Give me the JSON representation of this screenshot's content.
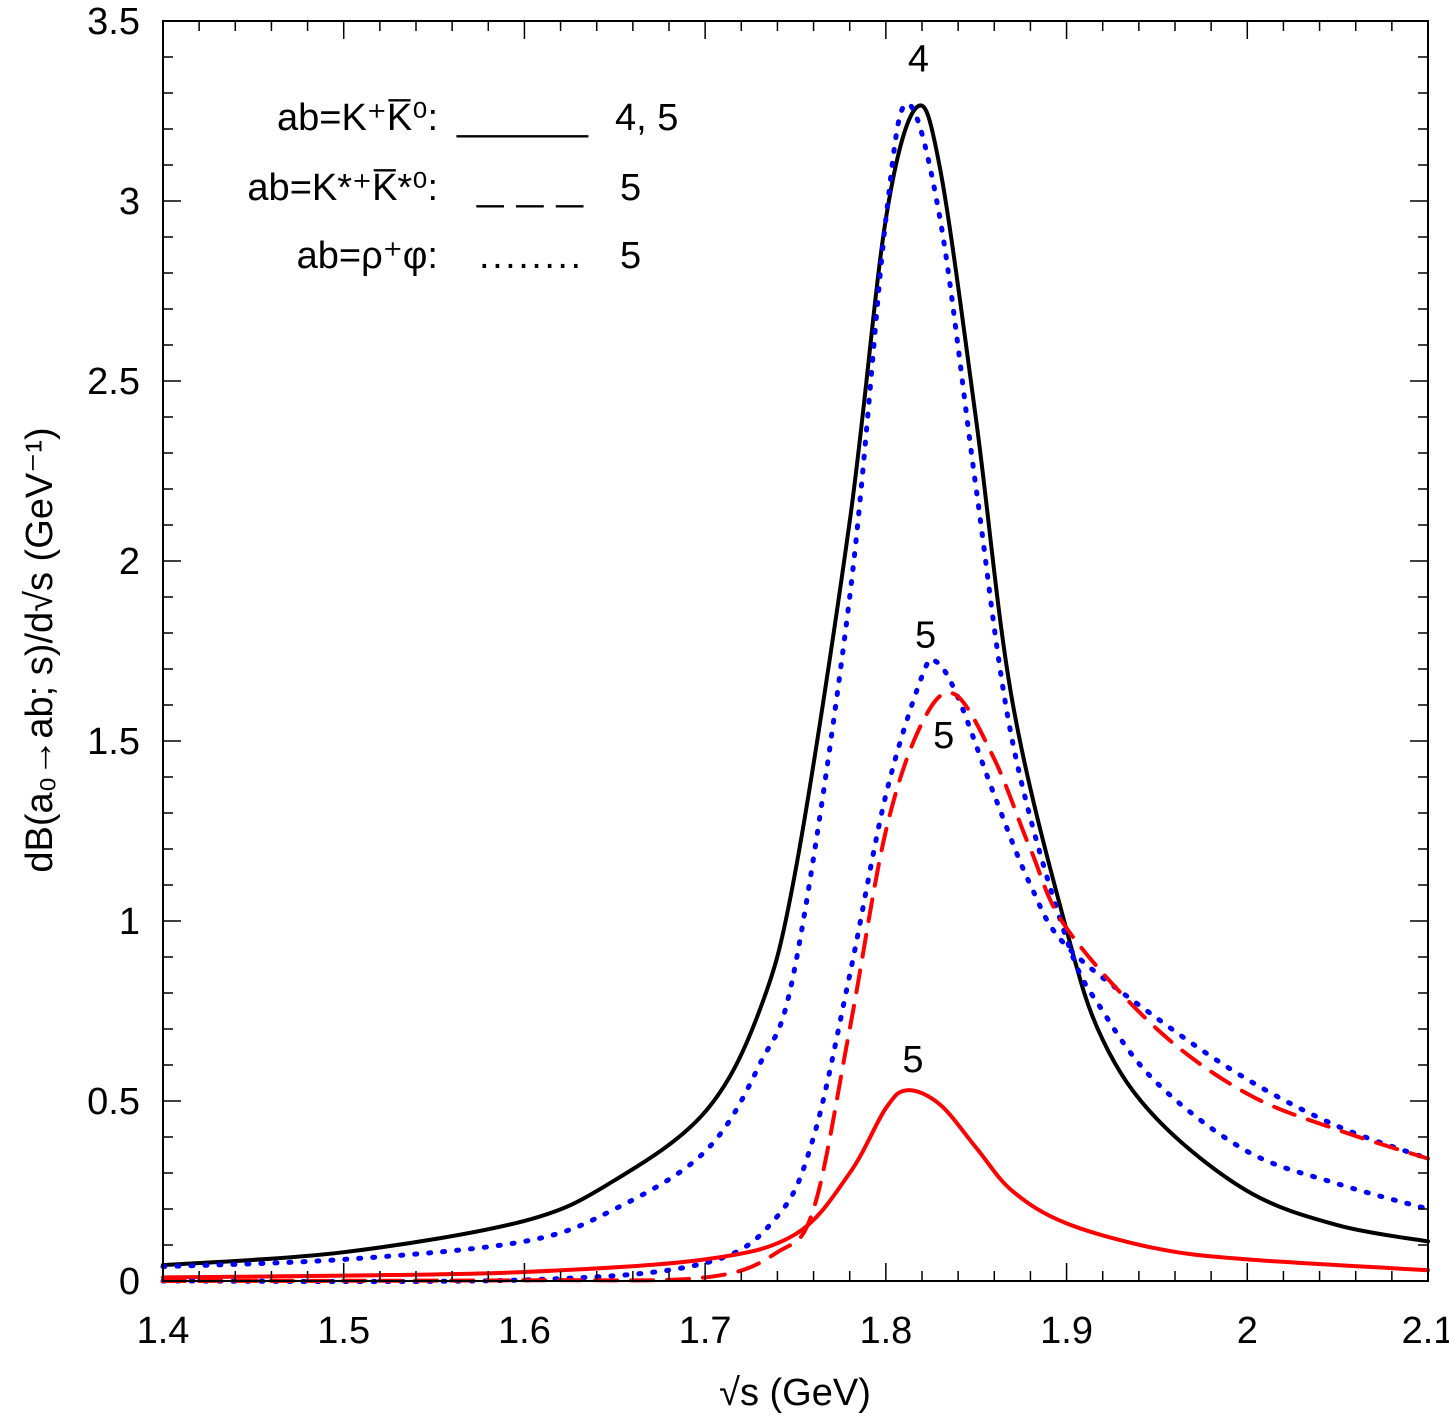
{
  "chart_data": {
    "type": "line",
    "title": "",
    "xlabel": "√s   (GeV)",
    "ylabel": "dB(a₀→ab; s)/d√s   (GeV⁻¹)",
    "xlim": [
      1.4,
      2.1
    ],
    "ylim": [
      0,
      3.5
    ],
    "grid": false,
    "x_ticks": [
      "1.4",
      "1.5",
      "1.6",
      "1.7",
      "1.8",
      "1.9",
      "2",
      "2.1"
    ],
    "y_ticks": [
      "0",
      "0.5",
      "1",
      "1.5",
      "2",
      "2.5",
      "3",
      "3.5"
    ],
    "legend": {
      "placement": "top-left",
      "entries": [
        {
          "label": "ab=K⁺K̅⁰:",
          "sample": "______",
          "refs": "4, 5",
          "style": "solid"
        },
        {
          "label": "ab=K*⁺K̅*⁰:",
          "sample": "_ _ _",
          "refs": "5",
          "style": "dashed"
        },
        {
          "label": "ab=ρ⁺φ:",
          "sample": "........",
          "refs": "5",
          "style": "dotted"
        }
      ]
    },
    "series": [
      {
        "name": "K+K0bar ref 4",
        "color": "#000000",
        "style": "solid",
        "x": [
          1.4,
          1.5,
          1.6,
          1.65,
          1.7,
          1.73,
          1.75,
          1.78,
          1.8,
          1.817,
          1.83,
          1.85,
          1.87,
          1.9,
          1.92,
          1.95,
          2.0,
          2.05,
          2.1
        ],
        "y": [
          0.044,
          0.08,
          0.167,
          0.28,
          0.47,
          0.75,
          1.14,
          2.11,
          2.95,
          3.26,
          3.09,
          2.39,
          1.61,
          0.975,
          0.67,
          0.45,
          0.25,
          0.155,
          0.11
        ]
      },
      {
        "name": "K+K0bar ref 5",
        "color": "#0000ff",
        "style": "dotted",
        "x": [
          1.4,
          1.5,
          1.6,
          1.65,
          1.7,
          1.73,
          1.75,
          1.78,
          1.8,
          1.812,
          1.83,
          1.85,
          1.87,
          1.9,
          1.92,
          1.95,
          2.0,
          2.05,
          2.1
        ],
        "y": [
          0.04,
          0.06,
          0.11,
          0.2,
          0.36,
          0.6,
          0.88,
          1.9,
          2.95,
          3.27,
          2.95,
          2.2,
          1.5,
          0.95,
          0.75,
          0.55,
          0.36,
          0.27,
          0.2
        ]
      },
      {
        "name": "rho+phi ref 5",
        "color": "#0000ff",
        "style": "dotted",
        "x": [
          1.4,
          1.6,
          1.7,
          1.74,
          1.76,
          1.78,
          1.8,
          1.82,
          1.828,
          1.84,
          1.86,
          1.88,
          1.9,
          1.95,
          2.0,
          2.05,
          2.1
        ],
        "y": [
          0.0,
          0.003,
          0.05,
          0.18,
          0.4,
          0.85,
          1.35,
          1.68,
          1.72,
          1.62,
          1.35,
          1.1,
          0.93,
          0.73,
          0.56,
          0.43,
          0.34
        ]
      },
      {
        "name": "K*+K*0bar ref 5",
        "color": "#ff0000",
        "style": "dashed",
        "x": [
          1.4,
          1.6,
          1.7,
          1.74,
          1.76,
          1.78,
          1.8,
          1.82,
          1.838,
          1.86,
          1.88,
          1.9,
          1.95,
          2.0,
          2.05,
          2.1
        ],
        "y": [
          0.0,
          0.002,
          0.01,
          0.08,
          0.2,
          0.7,
          1.25,
          1.55,
          1.63,
          1.45,
          1.2,
          0.98,
          0.7,
          0.52,
          0.42,
          0.34
        ]
      },
      {
        "name": "K+K0bar ref 5 (red)",
        "color": "#ff0000",
        "style": "solid",
        "x": [
          1.4,
          1.5,
          1.6,
          1.7,
          1.75,
          1.78,
          1.8,
          1.812,
          1.83,
          1.85,
          1.87,
          1.9,
          1.95,
          2.0,
          2.1
        ],
        "y": [
          0.01,
          0.015,
          0.025,
          0.06,
          0.13,
          0.3,
          0.48,
          0.53,
          0.49,
          0.37,
          0.25,
          0.16,
          0.09,
          0.06,
          0.03
        ]
      }
    ],
    "annotations": [
      {
        "text": "4",
        "x": 1.818,
        "y": 3.36
      },
      {
        "text": "5",
        "x": 1.822,
        "y": 1.76
      },
      {
        "text": "5",
        "x": 1.832,
        "y": 1.48
      },
      {
        "text": "5",
        "x": 1.815,
        "y": 0.58
      }
    ]
  }
}
